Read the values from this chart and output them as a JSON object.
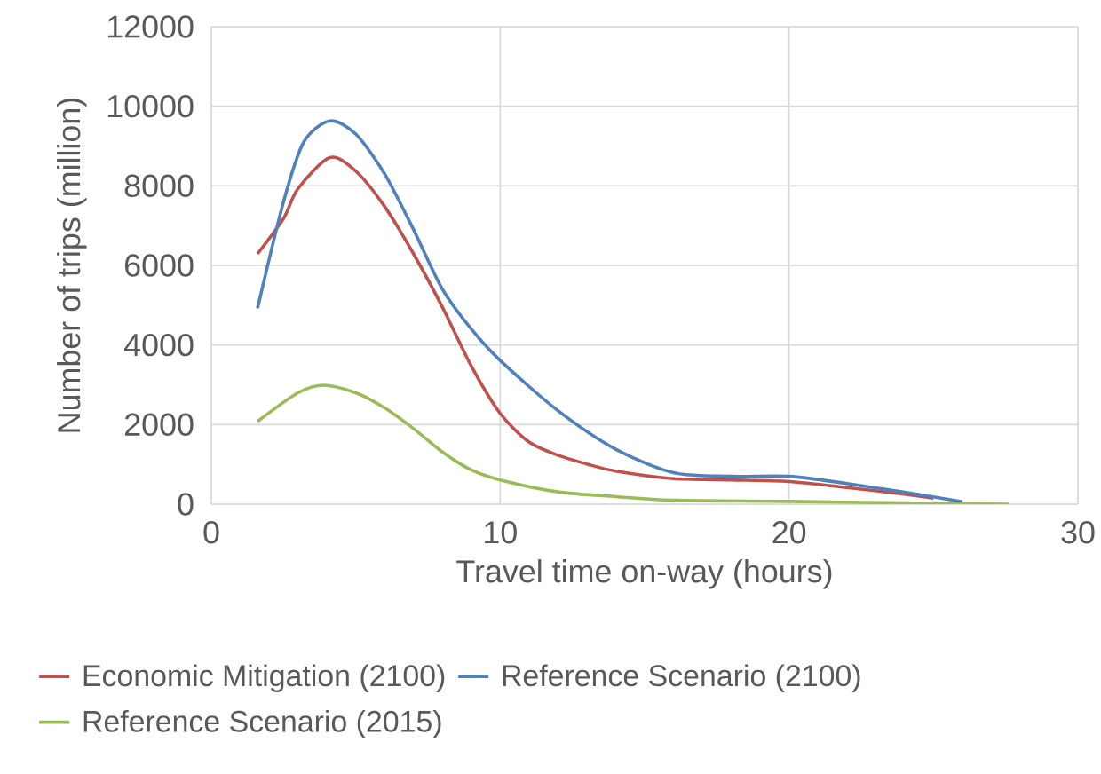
{
  "chart_data": {
    "type": "line",
    "xlabel": "Travel time on-way (hours)",
    "ylabel": "Number of trips (million)",
    "xlim": [
      0,
      30
    ],
    "xticks": [
      0,
      10,
      20,
      30
    ],
    "ylim": [
      0,
      12000
    ],
    "yticks": [
      0,
      2000,
      4000,
      6000,
      8000,
      10000,
      12000
    ],
    "grid": true,
    "legend": "bottom",
    "marker": "none",
    "line_style": "solid",
    "series": [
      {
        "name": "Economic Mitigation (2100)",
        "color": "#c0504d",
        "x": [
          1.6,
          2.5,
          3,
          4.1,
          5,
          6,
          7,
          8,
          9,
          10,
          11,
          12,
          13,
          14,
          16,
          18,
          20,
          22,
          24,
          25
        ],
        "values": [
          6290,
          7180,
          7930,
          8710,
          8370,
          7480,
          6290,
          4950,
          3470,
          2280,
          1560,
          1230,
          1010,
          830,
          640,
          610,
          570,
          420,
          250,
          150
        ]
      },
      {
        "name": "Reference Scenario (2100)",
        "color": "#4f81bd",
        "x": [
          1.6,
          2.5,
          3.2,
          4.1,
          5,
          6,
          7,
          8,
          9,
          10,
          12,
          14,
          16,
          18,
          20,
          22,
          24,
          26
        ],
        "values": [
          4920,
          7600,
          9100,
          9630,
          9300,
          8300,
          6900,
          5400,
          4400,
          3610,
          2350,
          1380,
          790,
          700,
          700,
          520,
          300,
          60
        ]
      },
      {
        "name": "Reference Scenario (2015)",
        "color": "#9bbb59",
        "x": [
          1.6,
          3,
          3.9,
          5,
          6,
          7,
          8,
          9,
          10,
          12,
          14,
          16,
          20,
          24,
          27.6
        ],
        "values": [
          2080,
          2800,
          2990,
          2800,
          2420,
          1900,
          1310,
          860,
          610,
          310,
          190,
          100,
          70,
          30,
          0
        ]
      }
    ]
  }
}
